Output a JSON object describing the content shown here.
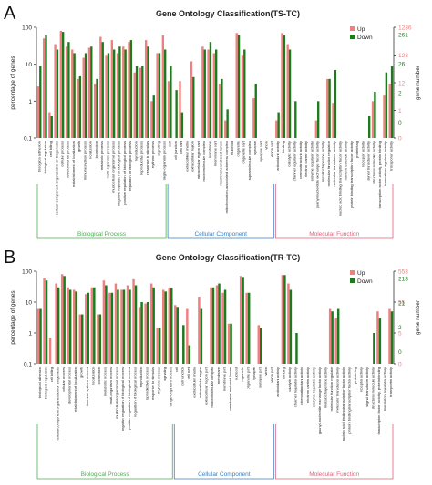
{
  "panels": [
    {
      "letter": "A",
      "title": "Gene Ontology Classification(TS-TC)"
    },
    {
      "letter": "B",
      "title": "Gene Ontology Classification(TR-TC)"
    }
  ],
  "colors": {
    "up": "#f08080",
    "down": "#1e7a1e",
    "bp": "#4caf50",
    "cc": "#3a7fc1",
    "mf": "#e0607a"
  },
  "categories": [
    "biological adhesion",
    "biological regulation",
    "cell killing",
    "cellular component organization or biogenesis",
    "cellular process",
    "developmental process",
    "establishment of localization",
    "growth",
    "immune system process",
    "localization",
    "locomotion",
    "metabolic process",
    "multi-organism process",
    "multicellular organismal process",
    "negative regulation of biological process",
    "positive regulation of biological process",
    "regulation of biological process",
    "reproduction",
    "reproductive process",
    "response to stimulus",
    "rhythmic process",
    "signaling",
    "single-organism process",
    "cell",
    "cell junction",
    "cell part",
    "extracellular matrix",
    "extracellular region",
    "extracellular region part",
    "macromolecular complex",
    "membrane",
    "membrane part",
    "membrane-enclosed lumen",
    "mitochondrion-associated adherens complex",
    "nucleoid",
    "organelle",
    "organelle part",
    "supramolecular complex",
    "synapse",
    "synapse part",
    "virion",
    "virion part",
    "antioxidant activity",
    "binding",
    "catalytic activity",
    "channel regulator activity",
    "chemoattractant activity",
    "electron carrier activity",
    "enzyme regulator activity",
    "guanyl-nucleotide exchange factor activity",
    "metallochaperone activity",
    "molecular function regulator",
    "molecular transducer activity",
    "nucleic acid binding transcription factor activity",
    "nutrient reservoir activity",
    "protein binding transcription factor activity",
    "protein tag",
    "receptor activity",
    "signal transducer activity",
    "structural molecule activity",
    "transcription factor activity, protein binding",
    "translation regulator activity",
    "transporter activity"
  ],
  "categories_b": [
    "biological adhesion",
    "biological regulation",
    "cell killing",
    "cellular component organization or biogenesis",
    "cellular process",
    "developmental process",
    "establishment of localization",
    "growth",
    "immune system process",
    "localization",
    "locomotion",
    "metabolic process",
    "multi-organism process",
    "multicellular organismal process",
    "negative regulation of biological process",
    "positive regulation of biological process",
    "regulation of biological process",
    "reproduction",
    "reproductive process",
    "response to stimulus",
    "rhythmic process",
    "signaling",
    "single-organism process",
    "cell",
    "cell junction",
    "cell part",
    "extracellular matrix",
    "extracellular region",
    "extracellular region part",
    "macromolecular complex",
    "membrane",
    "membrane part",
    "membrane-enclosed lumen",
    "nucleoid",
    "organelle",
    "organelle part",
    "synapse",
    "synapse part",
    "virion",
    "virion part",
    "antioxidant activity",
    "binding",
    "catalytic activity",
    "channel regulator activity",
    "chemoattractant activity",
    "electron carrier activity",
    "enzyme regulator activity",
    "guanyl-nucleotide exchange factor activity",
    "metallochaperone activity",
    "molecular function regulator",
    "molecular transducer activity",
    "nucleic acid binding transcription factor activity",
    "protein binding transcription factor activity",
    "protein tag",
    "receptor activity",
    "signal transducer activity",
    "structural molecule activity",
    "transcription factor activity, protein binding",
    "translation regulator activity",
    "transporter activity"
  ],
  "chart_data": [
    {
      "type": "bar",
      "title": "Gene Ontology Classification(TS-TC)",
      "ylabel": "percentage of genes",
      "y2label": "gene number",
      "yscale": "log",
      "ylim": [
        0.1,
        100
      ],
      "yticks": [
        "100",
        "10",
        "1",
        "0.1"
      ],
      "y2ticks_up": [
        "1236",
        "123",
        "12",
        "1",
        "0"
      ],
      "y2ticks_down": [
        "261",
        "26",
        "2",
        "0"
      ],
      "legend": [
        "Up",
        "Down"
      ],
      "groups": [
        {
          "name": "Biological Process",
          "count": 23
        },
        {
          "name": "Cellular Component",
          "count": 19
        },
        {
          "name": "Molecular Function",
          "count": 21
        }
      ],
      "series": [
        {
          "name": "Up",
          "values": [
            2.5,
            50,
            0.5,
            35,
            80,
            30,
            25,
            4,
            15,
            28,
            3,
            55,
            18,
            45,
            20,
            30,
            40,
            6,
            8,
            45,
            1,
            20,
            60,
            3.5,
            0.08,
            3.5,
            0.08,
            12,
            0.08,
            30,
            25,
            20,
            3,
            0.3,
            0.08,
            70,
            18,
            0.08,
            1.2,
            0.08,
            0.08,
            0.08,
            0.3,
            70,
            35,
            0.08,
            0.08,
            0.08,
            0.08,
            0.3,
            0.08,
            4,
            0.9,
            0.08,
            0.08,
            0.08,
            0.08,
            0.08,
            0.08,
            1,
            0.08,
            1.5,
            3
          ]
        },
        {
          "name": "Down",
          "values": [
            9,
            60,
            0.4,
            25,
            75,
            40,
            20,
            5,
            20,
            30,
            4,
            40,
            20,
            25,
            30,
            25,
            45,
            9,
            9,
            30,
            1.5,
            20,
            25,
            9,
            2,
            0.5,
            0.08,
            4.5,
            0.08,
            25,
            40,
            25,
            4,
            0.6,
            0.08,
            60,
            25,
            0.08,
            3,
            0.08,
            0.08,
            0.08,
            0.5,
            60,
            25,
            1,
            0.08,
            0.08,
            0.08,
            1,
            0.08,
            4,
            7,
            0.08,
            0.08,
            0.08,
            0.08,
            0.08,
            0.4,
            1.8,
            0.08,
            6,
            9
          ]
        }
      ]
    },
    {
      "type": "bar",
      "title": "Gene Ontology Classification(TR-TC)",
      "ylabel": "percentage of genes",
      "y2label": "gene number",
      "yscale": "log",
      "ylim": [
        0.1,
        100
      ],
      "yticks": [
        "100",
        "10",
        "1",
        "0.1"
      ],
      "y2ticks_up": [
        "553",
        "55",
        "5",
        "0"
      ],
      "y2ticks_down": [
        "213",
        "21",
        "2",
        "0"
      ],
      "legend": [
        "Up",
        "Down"
      ],
      "groups": [
        {
          "name": "Biological Process",
          "count": 23
        },
        {
          "name": "Cellular Component",
          "count": 17
        },
        {
          "name": "Molecular Function",
          "count": 20
        }
      ],
      "series": [
        {
          "name": "Up",
          "values": [
            6,
            60,
            0.7,
            40,
            80,
            30,
            25,
            4,
            18,
            30,
            4,
            50,
            20,
            40,
            25,
            35,
            55,
            7,
            9,
            40,
            1.5,
            25,
            30,
            8,
            0.08,
            6,
            0.08,
            15,
            0.08,
            30,
            35,
            20,
            2,
            0.08,
            70,
            20,
            0.08,
            1.8,
            0.08,
            0.08,
            0.08,
            75,
            40,
            0.08,
            0.08,
            0.08,
            0.08,
            0.08,
            0.08,
            6,
            3,
            0.08,
            0.08,
            0.08,
            0.08,
            0.08,
            0.08,
            5,
            0.08,
            6
          ]
        },
        {
          "name": "Down",
          "values": [
            6,
            50,
            0.08,
            30,
            70,
            25,
            22,
            4,
            20,
            30,
            4,
            35,
            20,
            25,
            25,
            25,
            35,
            10,
            10,
            30,
            1.5,
            22,
            28,
            7,
            1.8,
            0.4,
            0.08,
            6,
            0.08,
            30,
            40,
            25,
            2,
            0.08,
            65,
            20,
            0.08,
            1.5,
            0.08,
            0.08,
            0.08,
            75,
            25,
            1,
            0.08,
            0.08,
            0.08,
            0.08,
            0.08,
            5,
            6,
            0.08,
            0.08,
            0.08,
            0.08,
            0.08,
            1,
            3,
            0.08,
            5
          ]
        }
      ]
    }
  ]
}
